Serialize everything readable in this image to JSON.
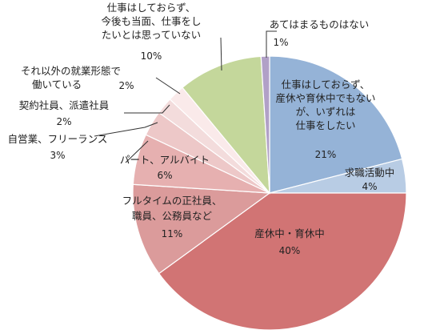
{
  "chart_data": {
    "type": "pie",
    "title": "",
    "start": "top",
    "direction": "clockwise",
    "slices": [
      {
        "label": [
          "仕事はしておらず、",
          "産休や育休中でもない",
          "が、いずれは",
          "仕事をしたい"
        ],
        "value": 21,
        "pct_label": "21%",
        "color": "#95b3d7"
      },
      {
        "label": [
          "求職活動中"
        ],
        "value": 4,
        "pct_label": "4%",
        "color": "#b8cce4"
      },
      {
        "label": [
          "産休中・育休中"
        ],
        "value": 40,
        "pct_label": "40%",
        "color": "#d17474"
      },
      {
        "label": [
          "フルタイムの正社員、",
          "職員、公務員など"
        ],
        "value": 11,
        "pct_label": "11%",
        "color": "#db9b9b"
      },
      {
        "label": [
          "パート、アルバイト"
        ],
        "value": 6,
        "pct_label": "6%",
        "color": "#e6b0b0"
      },
      {
        "label": [
          "自営業、フリーランス"
        ],
        "value": 3,
        "pct_label": "3%",
        "color": "#edc8c8"
      },
      {
        "label": [
          "契約社員、派遣社員"
        ],
        "value": 2,
        "pct_label": "2%",
        "color": "#f3dcdc"
      },
      {
        "label": [
          "それ以外の就業形態で",
          "働いている"
        ],
        "value": 2,
        "pct_label": "2%",
        "color": "#faeaea"
      },
      {
        "label": [
          "仕事はしておらず、",
          "今後も当面、仕事をし",
          "たいとは思っていない"
        ],
        "value": 10,
        "pct_label": "10%",
        "color": "#c4d79b"
      },
      {
        "label": [
          "あてはまるものはない"
        ],
        "value": 1,
        "pct_label": "1%",
        "color": "#b1a0c7"
      }
    ]
  }
}
